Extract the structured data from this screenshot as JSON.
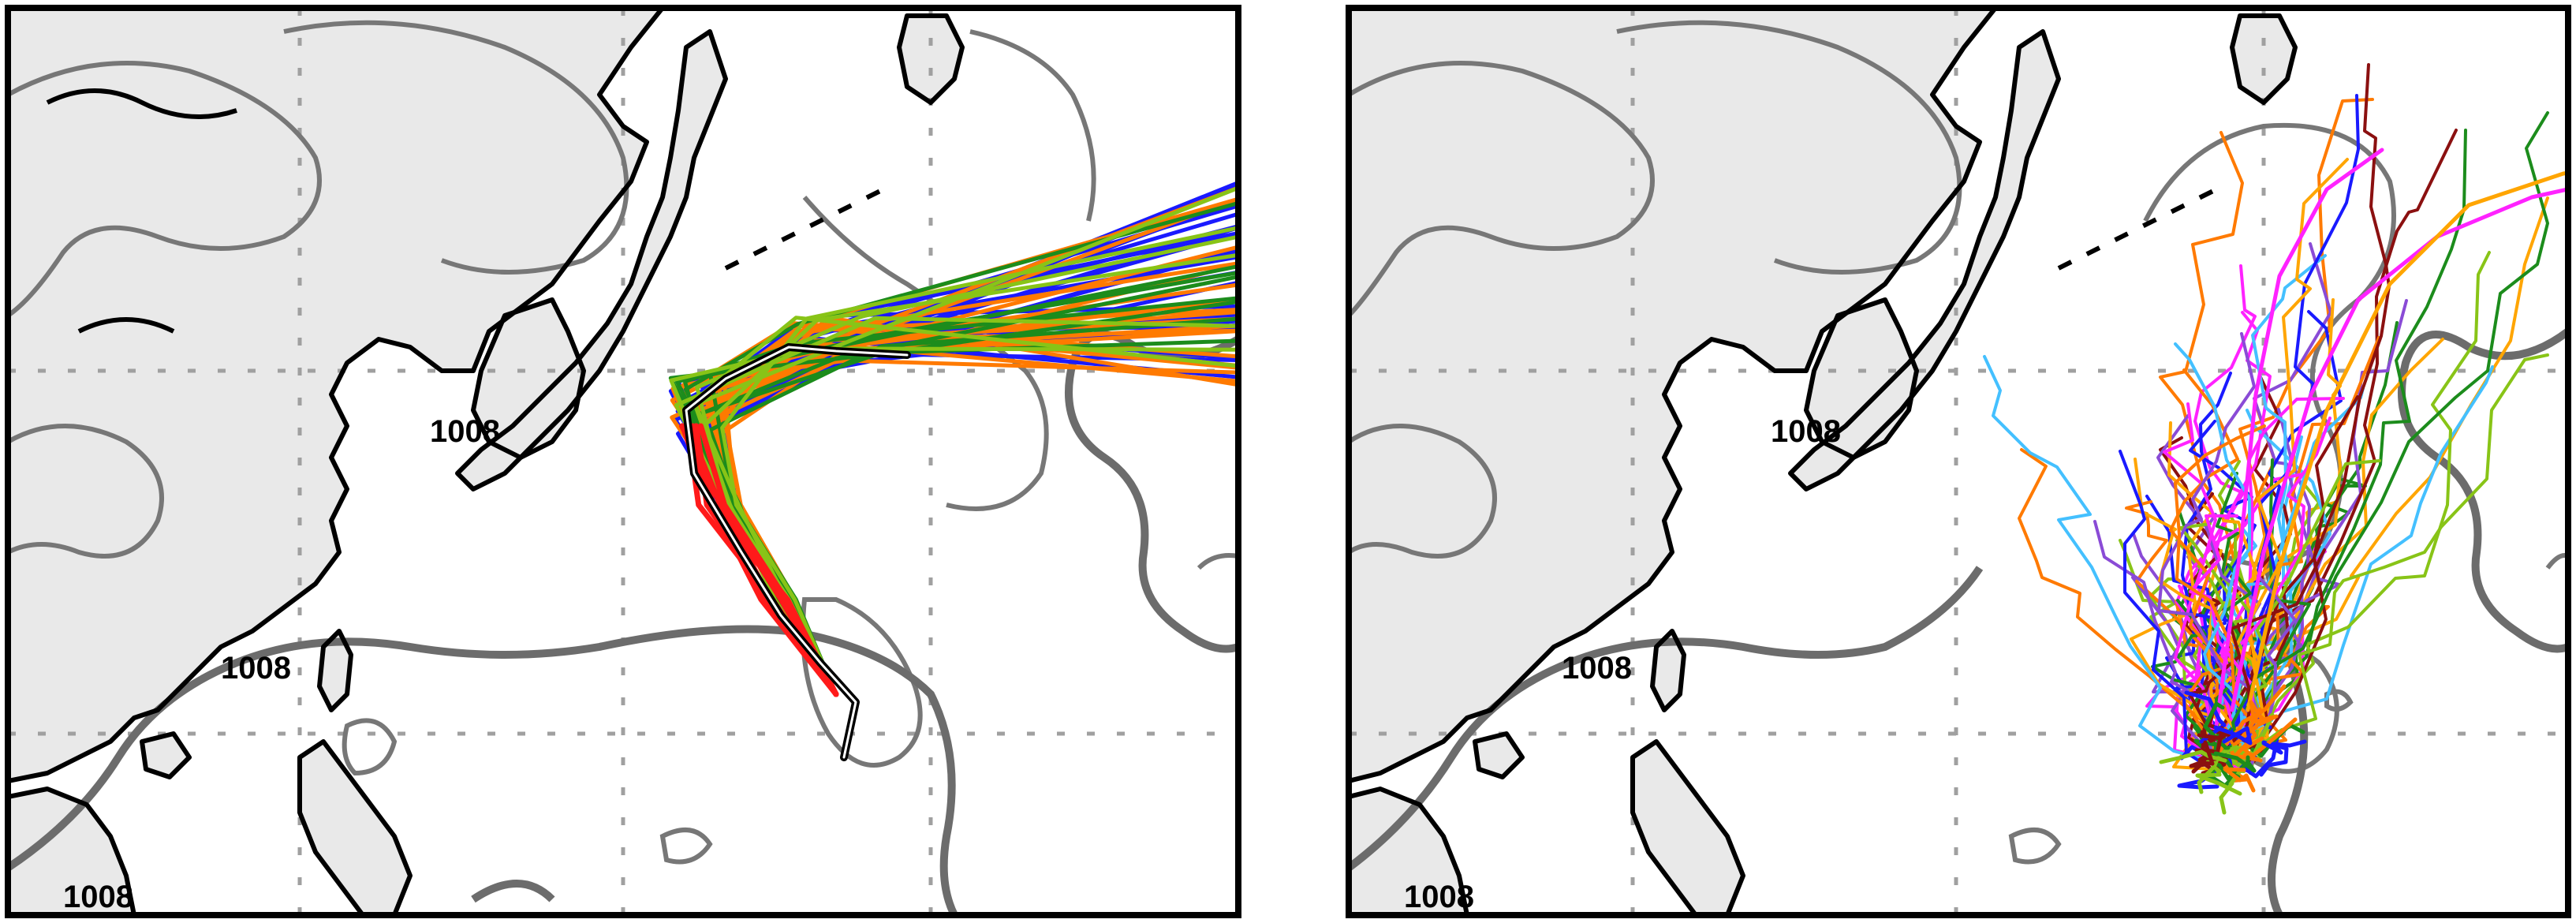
{
  "panels": [
    {
      "id": "left",
      "contour_labels": [
        "1008",
        "1008",
        "1008"
      ],
      "track_colors": [
        "#1a1aff",
        "#ff7a00",
        "#1c8c1c",
        "#88c417",
        "#ff1a1a",
        "#000000"
      ],
      "tracks": {
        "eastward_recurving": 60,
        "observed_track_color": "#000000"
      }
    },
    {
      "id": "right",
      "contour_labels": [
        "1008",
        "1008",
        "1008"
      ],
      "track_colors": [
        "#ff22ff",
        "#ffa500",
        "#44c0ff",
        "#1a1aff",
        "#ff7a00",
        "#1c8c1c",
        "#88c417",
        "#8b1010",
        "#8a4bd6"
      ]
    }
  ],
  "style": {
    "land_color": "#e9e9e9",
    "coast_color": "#000000",
    "contour_color": "#777777",
    "contour_thick_color": "#6c6c6c",
    "grid_color": "#a0a0a0",
    "frame_color": "#000000"
  }
}
